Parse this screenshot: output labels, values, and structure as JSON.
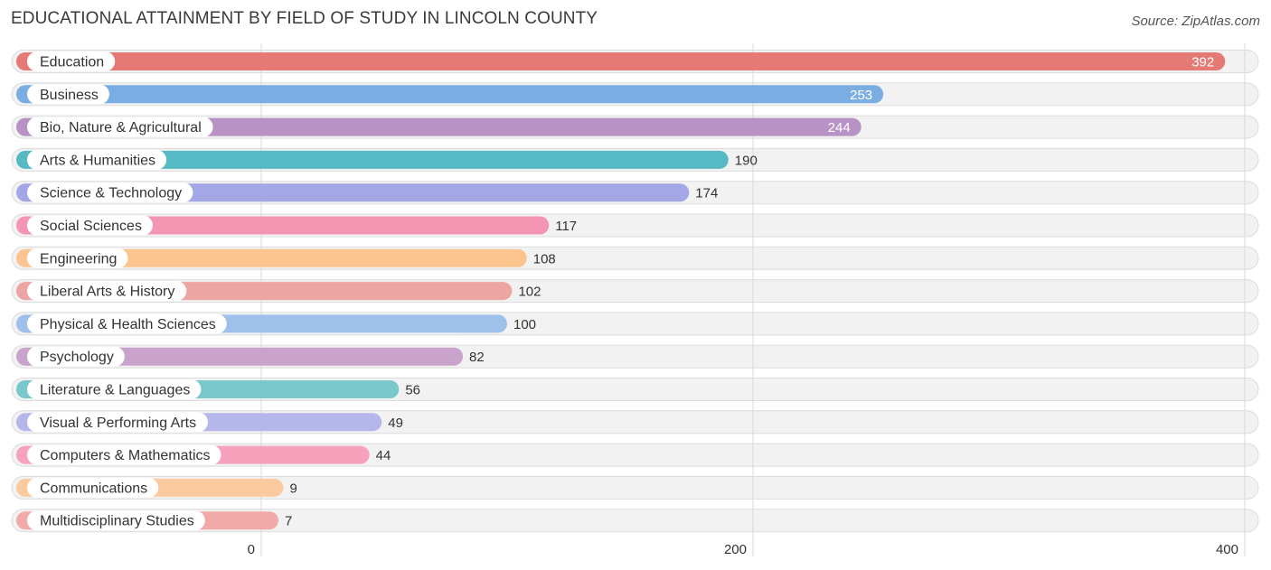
{
  "chart_data": {
    "type": "bar",
    "orientation": "horizontal",
    "title": "EDUCATIONAL ATTAINMENT BY FIELD OF STUDY IN LINCOLN COUNTY",
    "source": "Source: ZipAtlas.com",
    "categories": [
      "Education",
      "Business",
      "Bio, Nature & Agricultural",
      "Arts & Humanities",
      "Science & Technology",
      "Social Sciences",
      "Engineering",
      "Liberal Arts & History",
      "Physical & Health Sciences",
      "Psychology",
      "Literature & Languages",
      "Visual & Performing Arts",
      "Computers & Mathematics",
      "Communications",
      "Multidisciplinary Studies"
    ],
    "values": [
      392,
      253,
      244,
      190,
      174,
      117,
      108,
      102,
      100,
      82,
      56,
      49,
      44,
      9,
      7
    ],
    "colors": [
      "#e57a75",
      "#7aaee2",
      "#b892c4",
      "#56b9c4",
      "#a3a7e6",
      "#f496b3",
      "#fcc48e",
      "#eca5a3",
      "#9ec0ea",
      "#c9a3cb",
      "#78c8cc",
      "#b5b7eb",
      "#f7a1bd",
      "#fcca9f",
      "#f2aaa8"
    ],
    "xlim": [
      0,
      400
    ],
    "xticks": [
      0,
      200,
      400
    ],
    "xlabel": "",
    "ylabel": "",
    "grid": true
  }
}
